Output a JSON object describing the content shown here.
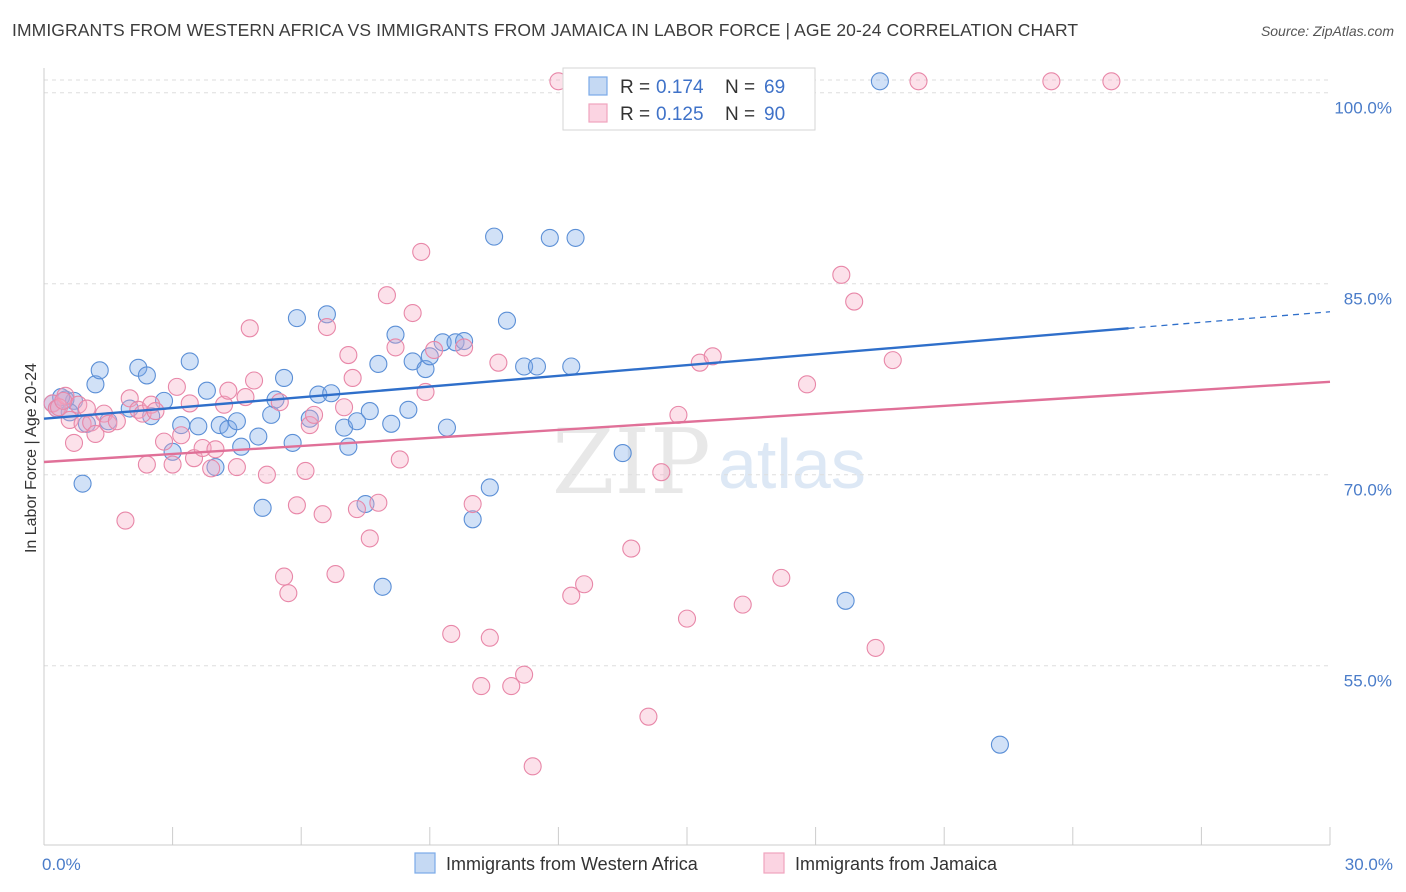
{
  "title": "IMMIGRANTS FROM WESTERN AFRICA VS IMMIGRANTS FROM JAMAICA IN LABOR FORCE | AGE 20-24 CORRELATION CHART",
  "source": "Source: ZipAtlas.com",
  "watermark": {
    "zip": "ZIP",
    "atlas": "atlas"
  },
  "chart_data": {
    "type": "scatter",
    "title": "IMMIGRANTS FROM WESTERN AFRICA VS IMMIGRANTS FROM JAMAICA IN LABOR FORCE | AGE 20-24 CORRELATION CHART",
    "xlabel": "",
    "ylabel": "In Labor Force | Age 20-24",
    "xlim": [
      0,
      30
    ],
    "ylim": [
      40,
      102
    ],
    "x_tick_labels": [
      {
        "value": 0,
        "label": "0.0%"
      },
      {
        "value": 30,
        "label": "30.0%"
      }
    ],
    "y_ticks": [
      {
        "value": 55,
        "label": "55.0%"
      },
      {
        "value": 70,
        "label": "70.0%"
      },
      {
        "value": 85,
        "label": "85.0%"
      },
      {
        "value": 100,
        "label": "100.0%"
      }
    ],
    "grid": "horizontal dashed",
    "legend_position": "top-center",
    "series": [
      {
        "name": "Immigrants from Western Africa",
        "color": "#7aaae8",
        "stroke": "#5b8fd6",
        "trend_color": "#2f6fca",
        "R": "0.174",
        "N": "69",
        "trend": {
          "x0": 0,
          "y0": 74.4,
          "x1": 25.3,
          "y1": 81.5,
          "x_dash_end": 30,
          "y_dash_end": 82.8
        },
        "points": [
          [
            0.2,
            75.6
          ],
          [
            0.3,
            75.2
          ],
          [
            0.5,
            75.9
          ],
          [
            0.7,
            75.8
          ],
          [
            0.9,
            69.3
          ],
          [
            1.0,
            74.0
          ],
          [
            1.2,
            77.1
          ],
          [
            1.3,
            78.2
          ],
          [
            1.5,
            74.2
          ],
          [
            2.0,
            75.2
          ],
          [
            2.2,
            78.4
          ],
          [
            2.4,
            77.8
          ],
          [
            2.5,
            74.6
          ],
          [
            2.8,
            75.8
          ],
          [
            3.0,
            71.8
          ],
          [
            3.2,
            73.9
          ],
          [
            3.4,
            78.9
          ],
          [
            3.6,
            73.8
          ],
          [
            3.8,
            76.6
          ],
          [
            4.0,
            70.6
          ],
          [
            4.1,
            73.9
          ],
          [
            4.3,
            73.6
          ],
          [
            4.5,
            74.2
          ],
          [
            4.6,
            72.2
          ],
          [
            5.0,
            73.0
          ],
          [
            5.1,
            67.4
          ],
          [
            5.3,
            74.7
          ],
          [
            5.4,
            75.9
          ],
          [
            5.6,
            77.6
          ],
          [
            5.8,
            72.5
          ],
          [
            5.9,
            82.3
          ],
          [
            6.2,
            74.4
          ],
          [
            6.4,
            76.3
          ],
          [
            6.6,
            82.6
          ],
          [
            6.7,
            76.4
          ],
          [
            7.0,
            73.7
          ],
          [
            7.1,
            72.2
          ],
          [
            7.3,
            74.2
          ],
          [
            7.5,
            67.7
          ],
          [
            7.6,
            75.0
          ],
          [
            7.8,
            78.7
          ],
          [
            7.9,
            61.2
          ],
          [
            8.1,
            74.0
          ],
          [
            8.2,
            81.0
          ],
          [
            8.5,
            75.1
          ],
          [
            8.6,
            78.9
          ],
          [
            8.9,
            78.3
          ],
          [
            9.0,
            79.3
          ],
          [
            9.3,
            80.4
          ],
          [
            9.4,
            73.7
          ],
          [
            9.6,
            80.4
          ],
          [
            9.8,
            80.5
          ],
          [
            10.0,
            66.5
          ],
          [
            10.4,
            69.0
          ],
          [
            10.5,
            88.7
          ],
          [
            10.8,
            82.1
          ],
          [
            11.2,
            78.5
          ],
          [
            11.5,
            78.5
          ],
          [
            11.8,
            88.6
          ],
          [
            12.3,
            78.5
          ],
          [
            12.4,
            88.6
          ],
          [
            13.5,
            71.7
          ],
          [
            15.3,
            101.0
          ],
          [
            15.5,
            100.9
          ],
          [
            18.7,
            60.1
          ],
          [
            19.5,
            100.9
          ],
          [
            22.3,
            48.8
          ],
          [
            0.6,
            74.9
          ],
          [
            0.4,
            76.1
          ]
        ]
      },
      {
        "name": "Immigrants from Jamaica",
        "color": "#f5a8c2",
        "stroke": "#e887a8",
        "trend_color": "#e07098",
        "R": "0.125",
        "N": "90",
        "trend": {
          "x0": 0,
          "y0": 71.0,
          "x1": 30,
          "y1": 77.3
        },
        "points": [
          [
            0.2,
            75.6
          ],
          [
            0.3,
            75.2
          ],
          [
            0.5,
            76.2
          ],
          [
            0.6,
            74.3
          ],
          [
            0.7,
            72.5
          ],
          [
            0.8,
            75.5
          ],
          [
            0.9,
            74.0
          ],
          [
            1.0,
            75.2
          ],
          [
            1.1,
            74.1
          ],
          [
            1.2,
            73.2
          ],
          [
            1.4,
            74.8
          ],
          [
            1.5,
            74.0
          ],
          [
            1.7,
            74.2
          ],
          [
            1.9,
            66.4
          ],
          [
            2.0,
            76.0
          ],
          [
            2.2,
            75.1
          ],
          [
            2.3,
            74.8
          ],
          [
            2.4,
            70.8
          ],
          [
            2.5,
            75.5
          ],
          [
            2.6,
            75.0
          ],
          [
            2.8,
            72.6
          ],
          [
            3.0,
            70.8
          ],
          [
            3.1,
            76.9
          ],
          [
            3.2,
            73.1
          ],
          [
            3.4,
            75.6
          ],
          [
            3.5,
            71.3
          ],
          [
            3.7,
            72.1
          ],
          [
            3.9,
            70.5
          ],
          [
            4.0,
            72.0
          ],
          [
            4.2,
            75.5
          ],
          [
            4.3,
            76.6
          ],
          [
            4.5,
            70.6
          ],
          [
            4.7,
            76.1
          ],
          [
            4.8,
            81.5
          ],
          [
            4.9,
            77.4
          ],
          [
            5.2,
            70.0
          ],
          [
            5.5,
            75.7
          ],
          [
            5.6,
            62.0
          ],
          [
            5.7,
            60.7
          ],
          [
            5.9,
            67.6
          ],
          [
            6.1,
            70.3
          ],
          [
            6.2,
            73.9
          ],
          [
            6.3,
            74.7
          ],
          [
            6.5,
            66.9
          ],
          [
            6.6,
            81.6
          ],
          [
            6.8,
            62.2
          ],
          [
            7.0,
            75.3
          ],
          [
            7.1,
            79.4
          ],
          [
            7.2,
            77.6
          ],
          [
            7.3,
            67.3
          ],
          [
            7.6,
            65.0
          ],
          [
            7.8,
            67.8
          ],
          [
            8.0,
            84.1
          ],
          [
            8.2,
            80.0
          ],
          [
            8.3,
            71.2
          ],
          [
            8.6,
            82.7
          ],
          [
            8.8,
            87.5
          ],
          [
            8.9,
            76.5
          ],
          [
            9.1,
            79.8
          ],
          [
            9.5,
            57.5
          ],
          [
            9.8,
            80.0
          ],
          [
            10.0,
            67.7
          ],
          [
            10.2,
            53.4
          ],
          [
            10.4,
            57.2
          ],
          [
            10.6,
            78.8
          ],
          [
            10.9,
            53.4
          ],
          [
            11.2,
            54.3
          ],
          [
            11.4,
            47.1
          ],
          [
            12.0,
            100.9
          ],
          [
            12.3,
            60.5
          ],
          [
            12.6,
            61.4
          ],
          [
            13.7,
            64.2
          ],
          [
            14.1,
            51.0
          ],
          [
            14.4,
            70.2
          ],
          [
            14.8,
            74.7
          ],
          [
            15.0,
            58.7
          ],
          [
            15.3,
            78.8
          ],
          [
            15.6,
            79.3
          ],
          [
            16.3,
            59.8
          ],
          [
            17.2,
            61.9
          ],
          [
            17.8,
            77.1
          ],
          [
            18.6,
            85.7
          ],
          [
            18.9,
            83.6
          ],
          [
            19.4,
            56.4
          ],
          [
            19.8,
            79.0
          ],
          [
            20.4,
            100.9
          ],
          [
            23.5,
            100.9
          ],
          [
            24.9,
            100.9
          ],
          [
            0.35,
            75.3
          ],
          [
            0.45,
            75.8
          ]
        ]
      }
    ]
  },
  "legend": {
    "r_label": "R =",
    "n_label": "N ="
  },
  "colors": {
    "blue_point": "#7aaae8",
    "pink_point": "#f5a8c2",
    "blue_line": "#2f6fca",
    "pink_line": "#e07098",
    "axis_text": "#4a7cc9"
  }
}
